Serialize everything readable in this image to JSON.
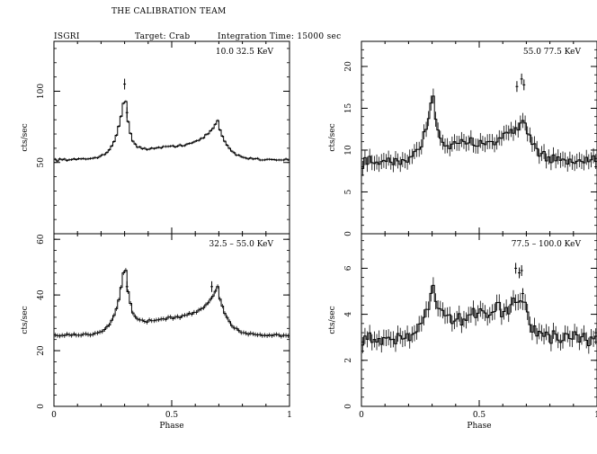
{
  "header": {
    "team": "THE CALIBRATION TEAM",
    "instrument": "ISGRI",
    "target": "Target: Crab",
    "integration": "Integration Time: 15000 sec"
  },
  "colors": {
    "line": "#000000",
    "background": "#ffffff"
  },
  "chart_data": [
    {
      "type": "line",
      "panel": "top-left",
      "energy_label": "10.0    32.5 KeV",
      "ylabel": "cts/sec",
      "xlabel": "",
      "xlim": [
        0,
        1
      ],
      "ylim": [
        0,
        135
      ],
      "yticks": [
        50,
        100
      ],
      "yticklabels": [
        "50",
        "100"
      ],
      "xticks": [
        0,
        0.5,
        1
      ],
      "xticklabels": [
        "",
        "",
        ""
      ],
      "peaks": [
        {
          "pos": 0.3,
          "amp": 46,
          "w": 0.022,
          "sharp": true
        },
        {
          "pos": 0.7,
          "amp": 24,
          "w": 0.04,
          "sharp": false
        }
      ],
      "baseline": 52,
      "bridge": 8,
      "noise": 0.6,
      "err": 0.9,
      "outliers": [
        {
          "x": 0.3,
          "y": 105
        },
        {
          "x": 0.31,
          "y": 85
        }
      ]
    },
    {
      "type": "line",
      "panel": "top-right",
      "energy_label": "55.0    77.5 KeV",
      "ylabel": "cts/sec",
      "xlabel": "",
      "xlim": [
        0,
        1
      ],
      "ylim": [
        0,
        23
      ],
      "yticks": [
        0,
        5,
        10,
        15,
        20
      ],
      "yticklabels": [
        "0",
        "5",
        "10",
        "15",
        "20"
      ],
      "xticks": [
        0,
        0.5,
        1
      ],
      "xticklabels": [
        "",
        "",
        ""
      ],
      "peaks": [
        {
          "pos": 0.3,
          "amp": 8.5,
          "w": 0.022,
          "sharp": true
        },
        {
          "pos": 0.7,
          "amp": 4.2,
          "w": 0.045,
          "sharp": false
        }
      ],
      "baseline": 8.5,
      "bridge": 2.2,
      "noise": 0.55,
      "err": 0.9,
      "outliers": [
        {
          "x": 0.66,
          "y": 17.6
        },
        {
          "x": 0.68,
          "y": 18.5
        },
        {
          "x": 0.69,
          "y": 17.8
        }
      ]
    },
    {
      "type": "line",
      "panel": "bottom-left",
      "energy_label": "32.5  –  55.0 KeV",
      "ylabel": "cts/sec",
      "xlabel": "Phase",
      "xlim": [
        0,
        1
      ],
      "ylim": [
        0,
        62
      ],
      "yticks": [
        0,
        20,
        40,
        60
      ],
      "yticklabels": [
        "0",
        "20",
        "40",
        "60"
      ],
      "xticks": [
        0,
        0.5,
        1
      ],
      "xticklabels": [
        "0",
        "0.5",
        "1"
      ],
      "peaks": [
        {
          "pos": 0.3,
          "amp": 26,
          "w": 0.022,
          "sharp": true
        },
        {
          "pos": 0.7,
          "amp": 15,
          "w": 0.04,
          "sharp": false
        }
      ],
      "baseline": 25.5,
      "bridge": 5.5,
      "noise": 0.4,
      "err": 0.8,
      "outliers": [
        {
          "x": 0.31,
          "y": 43
        },
        {
          "x": 0.67,
          "y": 43
        }
      ]
    },
    {
      "type": "line",
      "panel": "bottom-right",
      "energy_label": "77.5  –  100.0 KeV",
      "ylabel": "cts/sec",
      "xlabel": "Phase",
      "xlim": [
        0,
        1
      ],
      "ylim": [
        0,
        7.5
      ],
      "yticks": [
        0,
        2,
        4,
        6
      ],
      "yticklabels": [
        "0",
        "2",
        "4",
        "6"
      ],
      "xticks": [
        0,
        0.5,
        1
      ],
      "xticklabels": [
        "0",
        "0.5",
        "1"
      ],
      "peaks": [
        {
          "pos": 0.3,
          "amp": 2.4,
          "w": 0.024,
          "sharp": true
        },
        {
          "pos": 0.68,
          "amp": 1.4,
          "w": 0.045,
          "sharp": false
        }
      ],
      "baseline": 2.9,
      "bridge": 0.9,
      "noise": 0.28,
      "err": 0.35,
      "outliers": [
        {
          "x": 0.655,
          "y": 6.0
        },
        {
          "x": 0.67,
          "y": 5.8
        },
        {
          "x": 0.68,
          "y": 5.9
        },
        {
          "x": 0.685,
          "y": 4.9
        }
      ]
    }
  ]
}
